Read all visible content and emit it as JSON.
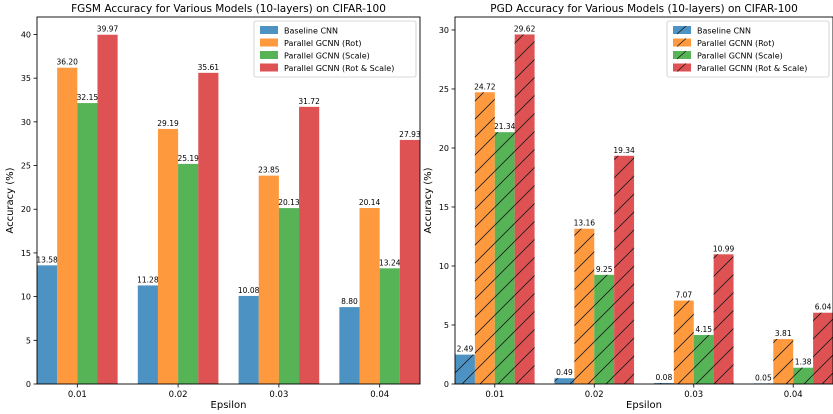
{
  "chart_data": [
    {
      "type": "bar",
      "title": "FGSM Accuracy for Various Models (10-layers) on CIFAR-100",
      "xlabel": "Epsilon",
      "ylabel": "Accuracy (%)",
      "categories": [
        "0.01",
        "0.02",
        "0.03",
        "0.04"
      ],
      "ylim": [
        0,
        42
      ],
      "yticks": [
        0,
        5,
        10,
        15,
        20,
        25,
        30,
        35,
        40
      ],
      "legend_position": "top-right",
      "grid": false,
      "hatched": false,
      "series": [
        {
          "name": "Baseline CNN",
          "color": "#1f77b4",
          "values": [
            13.58,
            11.28,
            10.08,
            8.8
          ],
          "labels": [
            "13.58",
            "11.28",
            "10.08",
            "8.80"
          ]
        },
        {
          "name": "Parallel GCNN (Rot)",
          "color": "#ff7f0e",
          "values": [
            36.2,
            29.19,
            23.85,
            20.14
          ],
          "labels": [
            "36.20",
            "29.19",
            "23.85",
            "20.14"
          ]
        },
        {
          "name": "Parallel GCNN (Scale)",
          "color": "#2ca02c",
          "values": [
            32.15,
            25.19,
            20.13,
            13.24
          ],
          "labels": [
            "32.15",
            "25.19",
            "20.13",
            "13.24"
          ]
        },
        {
          "name": "Parallel GCNN (Rot & Scale)",
          "color": "#d62728",
          "values": [
            39.97,
            35.61,
            31.72,
            27.93
          ],
          "labels": [
            "39.97",
            "35.61",
            "31.72",
            "27.93"
          ]
        }
      ]
    },
    {
      "type": "bar",
      "title": "PGD Accuracy for Various Models (10-layers) on CIFAR-100",
      "xlabel": "Epsilon",
      "ylabel": "Accuracy (%)",
      "categories": [
        "0.01",
        "0.02",
        "0.03",
        "0.04"
      ],
      "ylim": [
        0,
        31.1
      ],
      "yticks": [
        0,
        5,
        10,
        15,
        20,
        25,
        30
      ],
      "legend_position": "top-right",
      "grid": false,
      "hatched": true,
      "series": [
        {
          "name": "Baseline CNN",
          "color": "#1f77b4",
          "values": [
            2.49,
            0.49,
            0.08,
            0.05
          ],
          "labels": [
            "2.49",
            "0.49",
            "0.08",
            "0.05"
          ]
        },
        {
          "name": "Parallel GCNN (Rot)",
          "color": "#ff7f0e",
          "values": [
            24.72,
            13.16,
            7.07,
            3.81
          ],
          "labels": [
            "24.72",
            "13.16",
            "7.07",
            "3.81"
          ]
        },
        {
          "name": "Parallel GCNN (Scale)",
          "color": "#2ca02c",
          "values": [
            21.34,
            9.25,
            4.15,
            1.38
          ],
          "labels": [
            "21.34",
            "9.25",
            "4.15",
            "1.38"
          ]
        },
        {
          "name": "Parallel GCNN (Rot & Scale)",
          "color": "#d62728",
          "values": [
            29.62,
            19.34,
            10.99,
            6.04
          ],
          "labels": [
            "29.62",
            "19.34",
            "10.99",
            "6.04"
          ]
        }
      ]
    }
  ]
}
